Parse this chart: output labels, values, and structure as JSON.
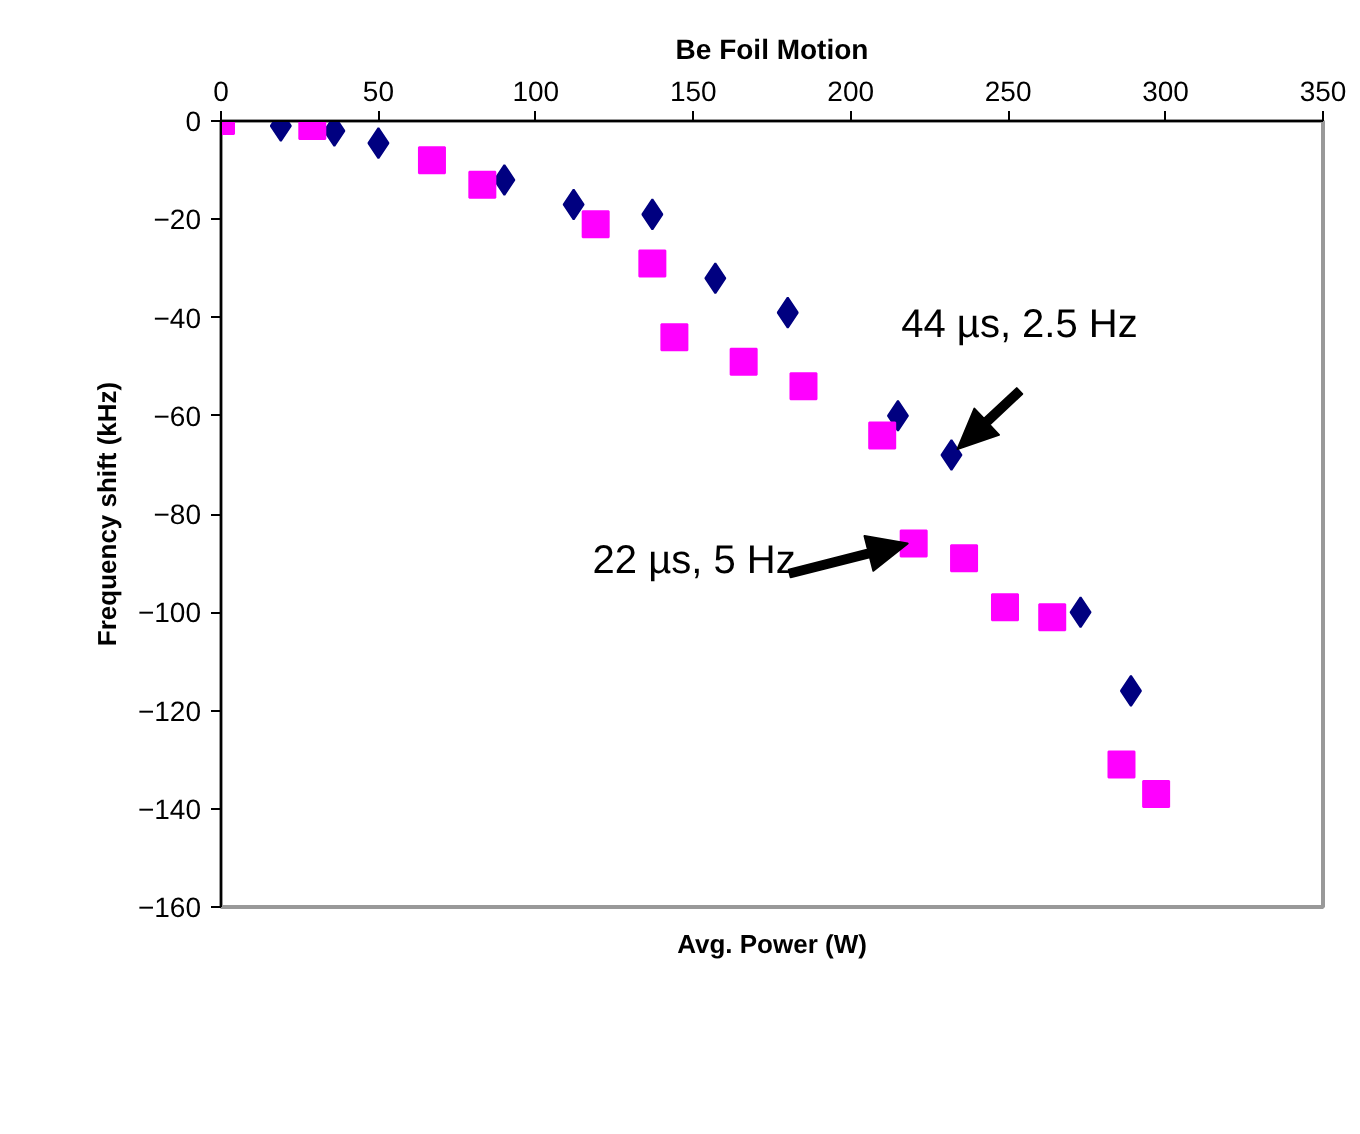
{
  "chart_data": {
    "type": "scatter",
    "title": "Be Foil Motion",
    "xlabel": "Avg. Power (W)",
    "ylabel": "Frequency shift (kHz)",
    "xlim": [
      0,
      350
    ],
    "xticks": [
      0,
      50,
      100,
      150,
      200,
      250,
      300,
      350
    ],
    "ylim": [
      -160,
      0
    ],
    "yticks": [
      -160,
      -140,
      -120,
      -100,
      -80,
      -60,
      -40,
      -20,
      0
    ],
    "grid": false,
    "series": [
      {
        "color": "#000080",
        "marker": "diamond",
        "x": [
          19,
          36,
          50,
          90,
          112,
          137,
          157,
          180,
          215,
          232,
          273,
          289
        ],
        "values": [
          -1,
          -2,
          -4.5,
          -12,
          -17,
          -19,
          -32,
          -39,
          -60,
          -68,
          -100,
          -116
        ]
      },
      {
        "color": "#ff00ff",
        "marker": "square",
        "x": [
          0,
          29,
          67,
          83,
          119,
          137,
          144,
          166,
          185,
          210,
          220,
          236,
          249,
          264,
          286,
          297
        ],
        "values": [
          0,
          -1,
          -8,
          -13,
          -21,
          -29,
          -44,
          -49,
          -54,
          -64,
          -86,
          -89,
          -99,
          -101,
          -131,
          -137
        ]
      }
    ],
    "annotations": [
      {
        "text": "44 µs, 2.5 Hz",
        "x": 232,
        "y": -68
      },
      {
        "text": "22 µs, 5 Hz",
        "x": 220,
        "y": -86
      }
    ]
  }
}
